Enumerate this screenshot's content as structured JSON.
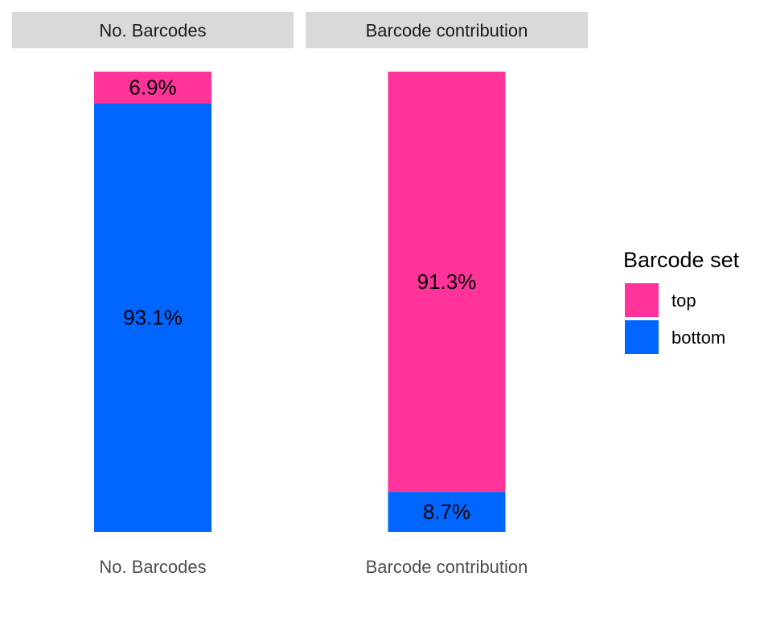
{
  "chart_data": {
    "type": "bar",
    "stacked": true,
    "normalized": true,
    "categories": [
      "No. Barcodes",
      "Barcode contribution"
    ],
    "facets": [
      {
        "strip_label": "No. Barcodes",
        "x_tick_label": "No. Barcodes"
      },
      {
        "strip_label": "Barcode contribution",
        "x_tick_label": "Barcode contribution"
      }
    ],
    "series": [
      {
        "name": "top",
        "color": "#ff3399",
        "values": [
          6.9,
          91.3
        ],
        "labels": [
          "6.9%",
          "91.3%"
        ]
      },
      {
        "name": "bottom",
        "color": "#0066ff",
        "values": [
          93.1,
          8.7
        ],
        "labels": [
          "93.1%",
          "8.7%"
        ]
      }
    ],
    "ylim": [
      0,
      100
    ],
    "xlabel": "",
    "ylabel": "",
    "y_axis_shown": false,
    "grid": false,
    "legend": {
      "title": "Barcode set",
      "position": "right",
      "entries": [
        {
          "label": "top",
          "color": "#ff3399"
        },
        {
          "label": "bottom",
          "color": "#0066ff"
        }
      ]
    },
    "strip_background": "#d9d9d9"
  }
}
